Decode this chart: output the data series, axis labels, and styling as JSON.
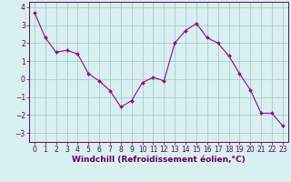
{
  "x": [
    0,
    1,
    2,
    3,
    4,
    5,
    6,
    7,
    8,
    9,
    10,
    11,
    12,
    13,
    14,
    15,
    16,
    17,
    18,
    19,
    20,
    21,
    22,
    23
  ],
  "y": [
    3.7,
    2.3,
    1.5,
    1.6,
    1.4,
    0.3,
    -0.1,
    -0.65,
    -1.55,
    -1.2,
    -0.2,
    0.1,
    -0.1,
    2.0,
    2.7,
    3.1,
    2.3,
    2.0,
    1.3,
    0.3,
    -0.6,
    -1.9,
    -1.9,
    -2.6
  ],
  "line_color": "#990099",
  "marker": "D",
  "marker_size": 2.0,
  "bg_color": "#d8f0f0",
  "grid_color": "#aacccc",
  "xlabel": "Windchill (Refroidissement éolien,°C)",
  "ylim": [
    -3.5,
    4.3
  ],
  "xlim": [
    -0.5,
    23.5
  ],
  "yticks": [
    -3,
    -2,
    -1,
    0,
    1,
    2,
    3,
    4
  ],
  "xtick_labels": [
    "0",
    "1",
    "2",
    "3",
    "4",
    "5",
    "6",
    "7",
    "8",
    "9",
    "10",
    "11",
    "12",
    "13",
    "14",
    "15",
    "16",
    "17",
    "18",
    "19",
    "20",
    "21",
    "22",
    "23"
  ],
  "tick_color": "#660066",
  "label_color": "#660066",
  "spine_color": "#660066",
  "xlabel_fontsize": 6.5,
  "tick_fontsize": 5.5,
  "linewidth": 0.8
}
